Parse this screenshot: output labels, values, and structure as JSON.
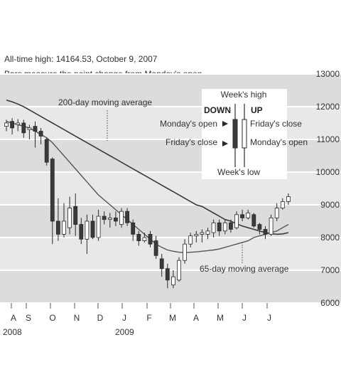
{
  "header": {
    "note_high": "All-time high: 14164.53, October 9, 2007",
    "note_bars": "Bars measure the point change from Monday's open"
  },
  "chart_data": {
    "type": "candlestick",
    "title": "",
    "xlabel": "",
    "ylabel": "",
    "ylim": [
      6000,
      13000
    ],
    "yticks": [
      6000,
      7000,
      8000,
      9000,
      10000,
      11000,
      12000,
      13000
    ],
    "ytick_labels": [
      "6000",
      "7000",
      "8000",
      "9000",
      "10000",
      "11000",
      "12000",
      "13000"
    ],
    "xtick_labels": [
      "A",
      "S",
      "O",
      "N",
      "D",
      "J",
      "F",
      "M",
      "A",
      "M",
      "J",
      "J"
    ],
    "year_labels": [
      "2008",
      "2009"
    ],
    "grid": "horizontal",
    "colors": {
      "up": "#ffffff",
      "down": "#3a3a3a",
      "stroke": "#2a2a2a",
      "band": "#dcdcdc",
      "ma": "#3a3a3a"
    },
    "legend": {
      "week_high": "Week's high",
      "week_low": "Week's low",
      "down": "DOWN",
      "up": "UP",
      "down_open": "Monday's open",
      "down_close": "Friday's close",
      "up_close": "Friday's close",
      "up_open": "Monday's open"
    },
    "annotations": {
      "ma200": "200-day moving average",
      "ma65": "65-day moving average"
    },
    "candles": [
      {
        "open": 11400,
        "close": 11500,
        "high": 11600,
        "low": 11250
      },
      {
        "open": 11550,
        "close": 11350,
        "high": 11650,
        "low": 11150
      },
      {
        "open": 11450,
        "close": 11500,
        "high": 11620,
        "low": 11250
      },
      {
        "open": 11500,
        "close": 11200,
        "high": 11600,
        "low": 11050
      },
      {
        "open": 11300,
        "close": 11350,
        "high": 11450,
        "low": 11000
      },
      {
        "open": 11400,
        "close": 11250,
        "high": 11550,
        "low": 10750
      },
      {
        "open": 11250,
        "close": 11100,
        "high": 11350,
        "low": 10850
      },
      {
        "open": 11000,
        "close": 10300,
        "high": 11050,
        "low": 10200
      },
      {
        "open": 10400,
        "close": 8500,
        "high": 10450,
        "low": 7800
      },
      {
        "open": 8500,
        "close": 8100,
        "high": 9200,
        "low": 7900
      },
      {
        "open": 8100,
        "close": 8500,
        "high": 9050,
        "low": 8000
      },
      {
        "open": 8300,
        "close": 8900,
        "high": 9250,
        "low": 8100
      },
      {
        "open": 8950,
        "close": 8400,
        "high": 9350,
        "low": 8050
      },
      {
        "open": 8400,
        "close": 7950,
        "high": 8600,
        "low": 7800
      },
      {
        "open": 7950,
        "close": 8500,
        "high": 8700,
        "low": 7500
      },
      {
        "open": 8500,
        "close": 8000,
        "high": 8700,
        "low": 7950
      },
      {
        "open": 8000,
        "close": 8650,
        "high": 8850,
        "low": 7900
      },
      {
        "open": 8650,
        "close": 8550,
        "high": 8800,
        "low": 8400
      },
      {
        "open": 8550,
        "close": 8600,
        "high": 8750,
        "low": 8300
      },
      {
        "open": 8600,
        "close": 8500,
        "high": 8800,
        "low": 8350
      },
      {
        "open": 8400,
        "close": 8800,
        "high": 8900,
        "low": 8300
      },
      {
        "open": 8800,
        "close": 8450,
        "high": 8900,
        "low": 8350
      },
      {
        "open": 8450,
        "close": 8100,
        "high": 8550,
        "low": 7900
      },
      {
        "open": 8100,
        "close": 7900,
        "high": 8200,
        "low": 7750
      },
      {
        "open": 7900,
        "close": 8000,
        "high": 8150,
        "low": 7850
      },
      {
        "open": 8100,
        "close": 7800,
        "high": 8200,
        "low": 7700
      },
      {
        "open": 7900,
        "close": 7450,
        "high": 8050,
        "low": 7350
      },
      {
        "open": 7350,
        "close": 7050,
        "high": 7500,
        "low": 6800
      },
      {
        "open": 7050,
        "close": 6700,
        "high": 7200,
        "low": 6450
      },
      {
        "open": 6550,
        "close": 6800,
        "high": 7000,
        "low": 6450
      },
      {
        "open": 6700,
        "close": 7300,
        "high": 7400,
        "low": 6650
      },
      {
        "open": 7300,
        "close": 7800,
        "high": 7950,
        "low": 7200
      },
      {
        "open": 7800,
        "close": 8050,
        "high": 8150,
        "low": 7700
      },
      {
        "open": 8050,
        "close": 8100,
        "high": 8200,
        "low": 7850
      },
      {
        "open": 8100,
        "close": 8150,
        "high": 8250,
        "low": 7850
      },
      {
        "open": 8100,
        "close": 8200,
        "high": 8300,
        "low": 7950
      },
      {
        "open": 8150,
        "close": 8450,
        "high": 8550,
        "low": 8000
      },
      {
        "open": 8450,
        "close": 8200,
        "high": 8550,
        "low": 8050
      },
      {
        "open": 8200,
        "close": 8450,
        "high": 8550,
        "low": 8100
      },
      {
        "open": 8450,
        "close": 8250,
        "high": 8550,
        "low": 8150
      },
      {
        "open": 8300,
        "close": 8700,
        "high": 8800,
        "low": 8250
      },
      {
        "open": 8700,
        "close": 8600,
        "high": 8850,
        "low": 8500
      },
      {
        "open": 8600,
        "close": 8750,
        "high": 8850,
        "low": 8550
      },
      {
        "open": 8700,
        "close": 8350,
        "high": 8750,
        "low": 8300
      },
      {
        "open": 8400,
        "close": 8250,
        "high": 8450,
        "low": 8100
      },
      {
        "open": 8250,
        "close": 8100,
        "high": 8350,
        "low": 7950
      },
      {
        "open": 8100,
        "close": 8600,
        "high": 8700,
        "low": 8050
      },
      {
        "open": 8600,
        "close": 8900,
        "high": 9050,
        "low": 8500
      },
      {
        "open": 8900,
        "close": 9100,
        "high": 9200,
        "low": 8850
      },
      {
        "open": 9100,
        "close": 9250,
        "high": 9350,
        "low": 9000
      }
    ],
    "ma200": [
      12200,
      12150,
      12080,
      12000,
      11900,
      11800,
      11700,
      11600,
      11500,
      11400,
      11300,
      11200,
      11100,
      11000,
      10900,
      10800,
      10700,
      10600,
      10500,
      10400,
      10300,
      10200,
      10100,
      10000,
      9900,
      9800,
      9700,
      9600,
      9500,
      9400,
      9300,
      9200,
      9100,
      9000,
      8950,
      8850,
      8750,
      8650,
      8550,
      8500,
      8420,
      8350,
      8300,
      8250,
      8200,
      8150,
      8120,
      8100,
      8110,
      8150
    ],
    "ma65": [
      11550,
      11500,
      11450,
      11400,
      11350,
      11250,
      11150,
      11050,
      10900,
      10700,
      10500,
      10300,
      10100,
      9900,
      9700,
      9500,
      9300,
      9150,
      9000,
      8850,
      8700,
      8550,
      8400,
      8250,
      8100,
      7950,
      7800,
      7700,
      7620,
      7580,
      7550,
      7540,
      7550,
      7560,
      7580,
      7600,
      7620,
      7650,
      7700,
      7750,
      7800,
      7850,
      7900,
      8000,
      8050,
      8100,
      8150,
      8200,
      8300,
      8400
    ]
  }
}
